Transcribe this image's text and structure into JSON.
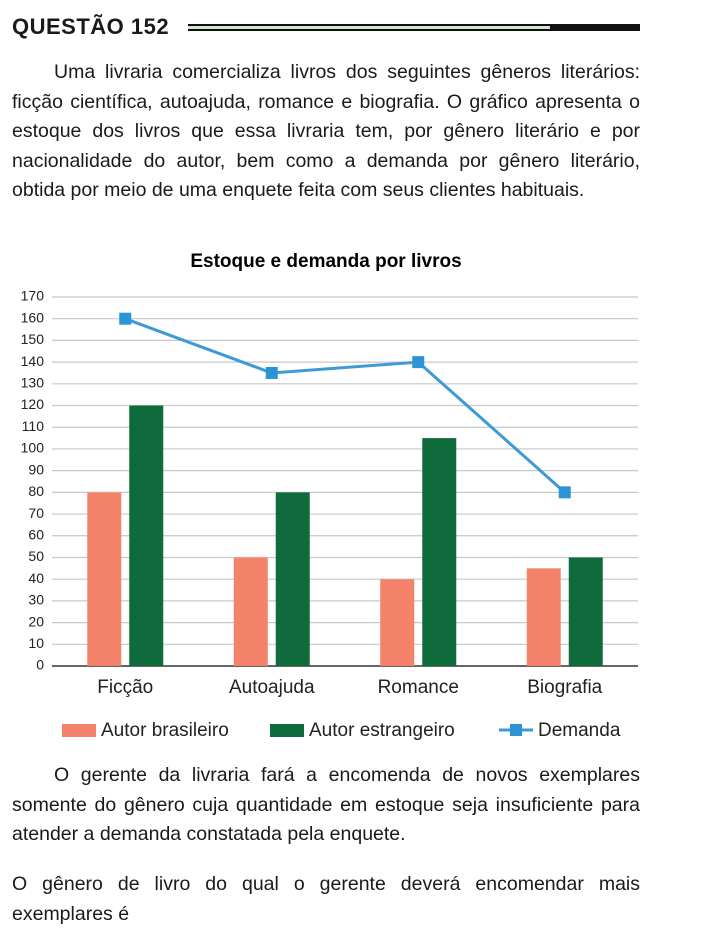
{
  "question": "QUESTÃO 152",
  "paragraphs": [
    "Uma livraria comercializa livros dos seguintes gêneros literários: ficção científica, autoajuda, romance e biografia. O gráfico apresenta o estoque dos livros que essa livraria tem, por gênero literário e por nacionalidade do autor, bem como a demanda por gênero literário, obtida por meio de uma enquete feita com seus clientes habituais.",
    "O gerente da livraria fará a encomenda de novos exemplares somente do gênero cuja quantidade em estoque seja insuficiente para atender a demanda constatada pela enquete.",
    "O gênero de livro do qual o gerente deverá encomendar mais exemplares é"
  ],
  "chart_data": {
    "type": "bar",
    "title": "Estoque e demanda por livros",
    "categories": [
      "Ficção",
      "Autoajuda",
      "Romance",
      "Biografia"
    ],
    "series": [
      {
        "name": "Autor brasileiro",
        "color": "#f4826a",
        "type": "bar",
        "values": [
          80,
          50,
          40,
          45
        ]
      },
      {
        "name": "Autor estrangeiro",
        "color": "#0f6b3b",
        "type": "bar",
        "values": [
          120,
          80,
          105,
          50
        ]
      },
      {
        "name": "Demanda",
        "color": "#3d9ad6",
        "type": "line",
        "values": [
          160,
          135,
          140,
          80
        ]
      }
    ],
    "ylim": [
      0,
      170
    ],
    "yticks": [
      0,
      10,
      20,
      30,
      40,
      50,
      60,
      70,
      80,
      90,
      100,
      110,
      120,
      130,
      140,
      150,
      160,
      170
    ],
    "grid": true,
    "legend": "bottom"
  }
}
